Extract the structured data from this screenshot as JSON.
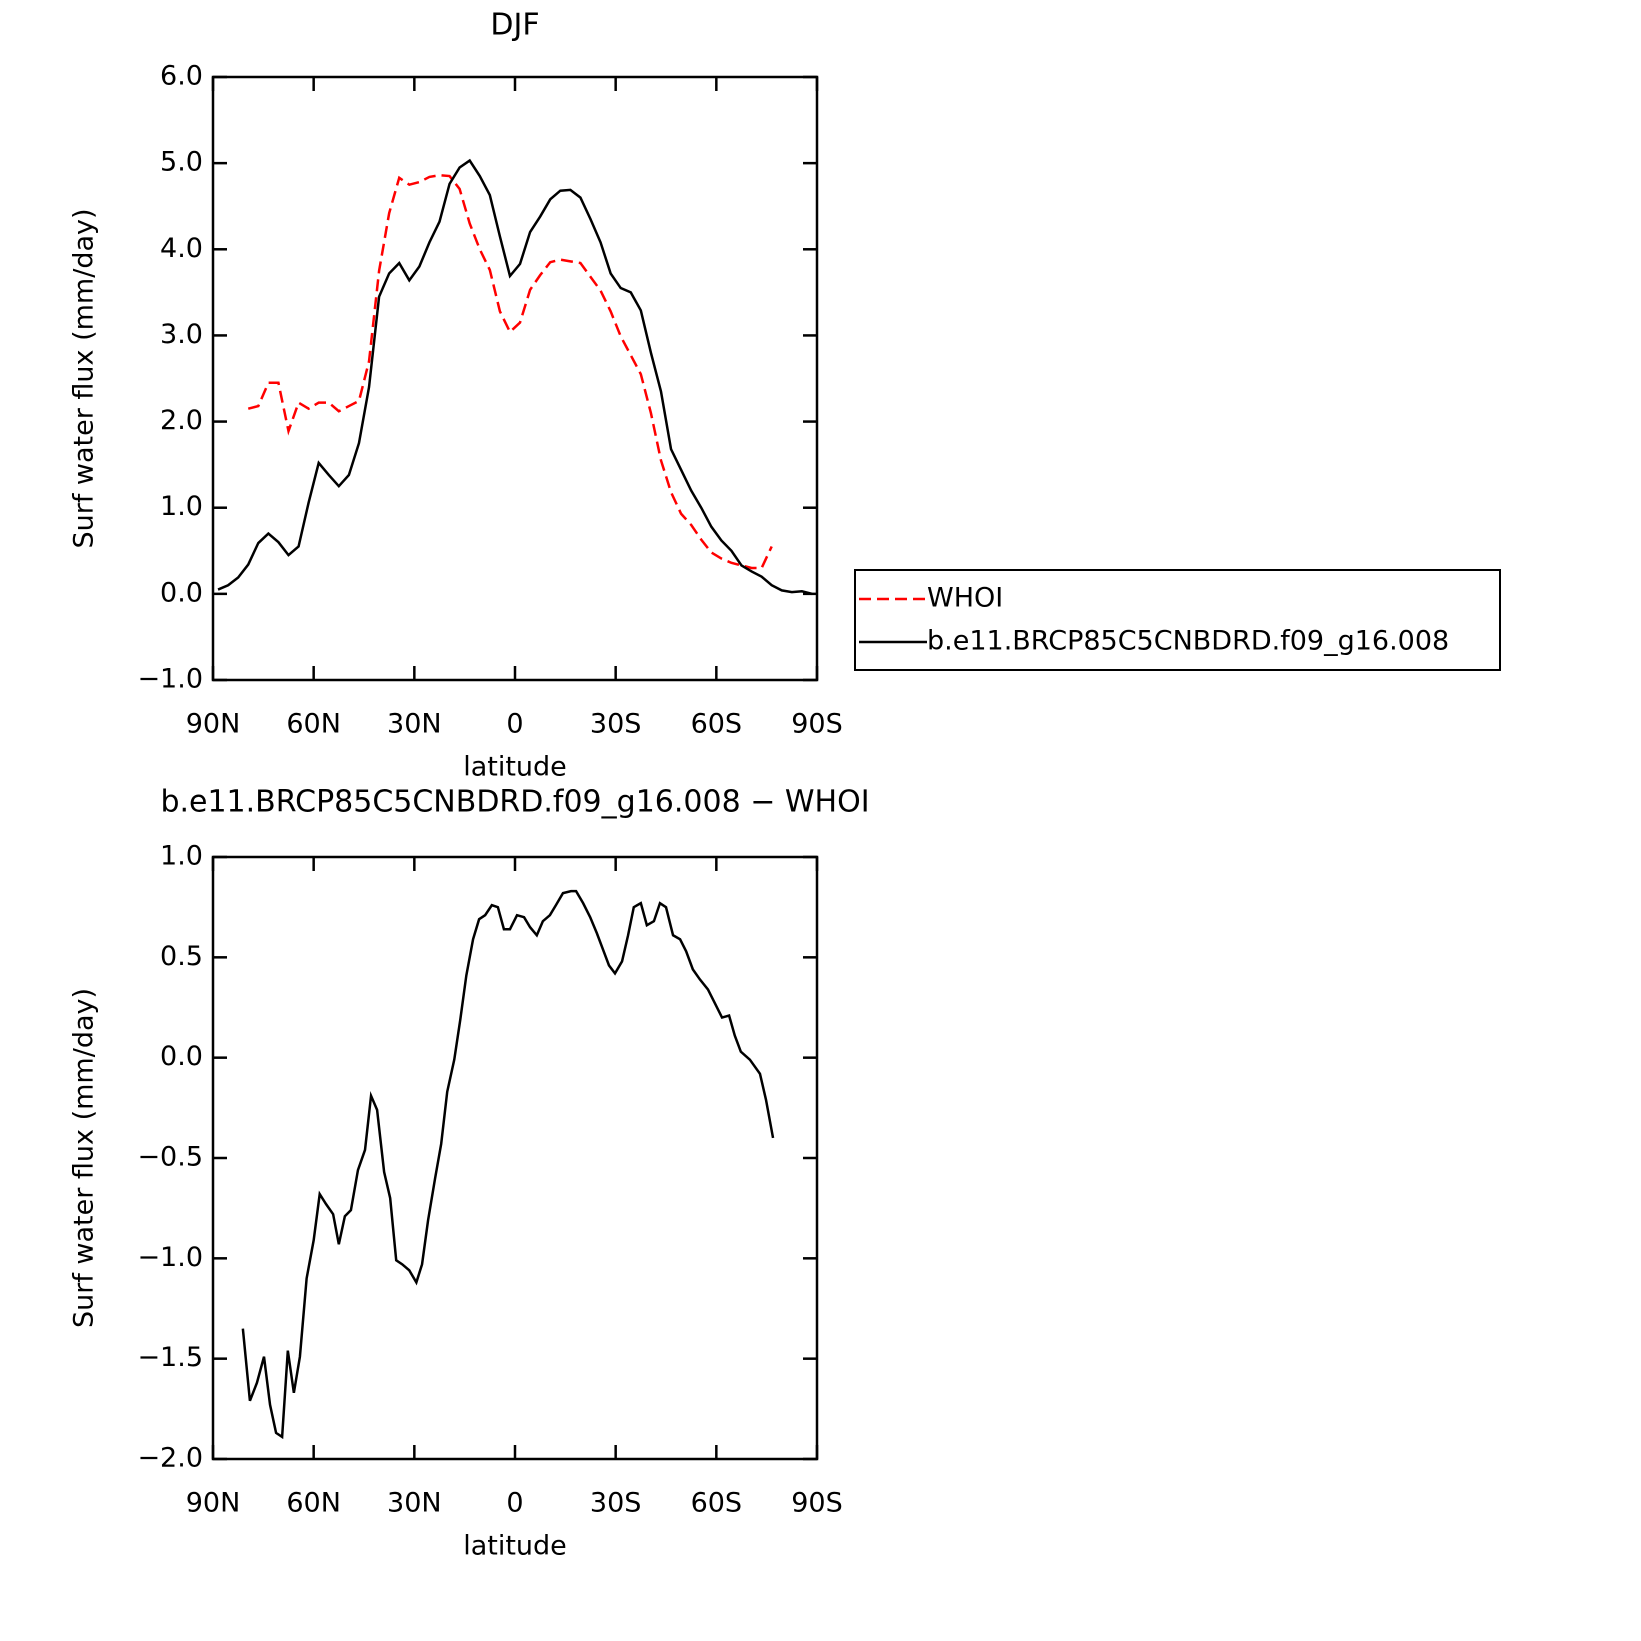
{
  "chart_data": [
    {
      "type": "line",
      "title": "DJF",
      "x_label": "latitude",
      "y_label": "Surf water flux (mm/day)",
      "x": [
        88.5,
        85.5,
        82.5,
        79.5,
        76.5,
        73.5,
        70.5,
        67.5,
        64.5,
        61.5,
        58.5,
        55.5,
        52.5,
        49.5,
        46.5,
        43.5,
        40.5,
        37.5,
        34.5,
        31.5,
        28.5,
        25.5,
        22.5,
        19.5,
        16.5,
        13.5,
        10.5,
        7.5,
        4.5,
        1.5,
        -1.5,
        -4.5,
        -7.5,
        -10.5,
        -13.5,
        -16.5,
        -19.5,
        -22.5,
        -25.5,
        -28.5,
        -31.5,
        -34.5,
        -37.5,
        -40.5,
        -43.5,
        -46.5,
        -49.5,
        -52.5,
        -55.5,
        -58.5,
        -61.5,
        -64.5,
        -67.5,
        -70.5,
        -73.5,
        -76.5,
        -79.5,
        -82.5,
        -85.5,
        -88.5
      ],
      "xlim": [
        90,
        -90
      ],
      "xticks": [
        {
          "value": 90,
          "label": "90N"
        },
        {
          "value": 60,
          "label": "60N"
        },
        {
          "value": 30,
          "label": "30N"
        },
        0,
        {
          "value": -30,
          "label": "30S"
        },
        {
          "value": -60,
          "label": "60S"
        },
        {
          "value": -90,
          "label": "90S"
        }
      ],
      "ylim": [
        -1,
        6
      ],
      "yticks": [
        {
          "value": -1,
          "label": "−1.0"
        },
        {
          "value": 0,
          "label": "0.0"
        },
        {
          "value": 1,
          "label": "1.0"
        },
        {
          "value": 2,
          "label": "2.0"
        },
        {
          "value": 3,
          "label": "3.0"
        },
        {
          "value": 4,
          "label": "4.0"
        },
        {
          "value": 5,
          "label": "5.0"
        },
        {
          "value": 6,
          "label": "6.0"
        }
      ],
      "legend": "outside-right",
      "series": [
        {
          "name": "WHOI",
          "color": "#ff0000",
          "line_style": "dashed",
          "values": [
            null,
            null,
            null,
            2.15,
            2.18,
            2.45,
            2.45,
            1.89,
            2.22,
            2.15,
            2.22,
            2.22,
            2.12,
            2.18,
            2.24,
            2.7,
            3.75,
            4.42,
            4.83,
            4.75,
            4.78,
            4.84,
            4.86,
            4.85,
            4.7,
            4.3,
            4.0,
            3.76,
            3.28,
            3.04,
            3.15,
            3.53,
            3.7,
            3.85,
            3.88,
            3.86,
            3.84,
            3.68,
            3.52,
            3.28,
            2.99,
            2.77,
            2.55,
            2.1,
            1.55,
            1.18,
            0.93,
            0.8,
            0.63,
            0.48,
            0.41,
            0.36,
            0.33,
            0.3,
            0.3,
            0.55,
            null,
            null,
            null,
            null
          ]
        },
        {
          "name": "b.e11.BRCP85C5CNBDRD.f09_g16.008",
          "color": "#000000",
          "line_style": "solid",
          "values": [
            0.05,
            0.1,
            0.19,
            0.34,
            0.59,
            0.7,
            0.6,
            0.45,
            0.55,
            1.06,
            1.52,
            1.38,
            1.25,
            1.38,
            1.75,
            2.4,
            3.45,
            3.72,
            3.84,
            3.64,
            3.8,
            4.08,
            4.32,
            4.76,
            4.95,
            5.03,
            4.85,
            4.63,
            4.15,
            3.69,
            3.83,
            4.2,
            4.38,
            4.58,
            4.68,
            4.69,
            4.6,
            4.35,
            4.08,
            3.72,
            3.55,
            3.5,
            3.29,
            2.8,
            2.35,
            1.68,
            1.44,
            1.2,
            1.0,
            0.78,
            0.62,
            0.5,
            0.33,
            0.26,
            0.2,
            0.1,
            0.04,
            0.02,
            0.03,
            0.0
          ]
        }
      ]
    },
    {
      "type": "line",
      "title": "b.e11.BRCP85C5CNBDRD.f09_g16.008 − WHOI",
      "x_label": "latitude",
      "y_label": "Surf water flux (mm/day)",
      "x": [
        81.1,
        79.0,
        76.9,
        74.8,
        73.0,
        71.2,
        69.4,
        67.7,
        65.9,
        64.1,
        62.1,
        60.0,
        58.2,
        56.3,
        54.2,
        52.5,
        50.7,
        48.9,
        46.8,
        44.7,
        42.9,
        41.1,
        39.0,
        37.2,
        35.4,
        33.6,
        31.5,
        29.4,
        27.7,
        25.9,
        23.8,
        22.0,
        20.2,
        18.1,
        16.3,
        14.5,
        12.5,
        10.7,
        8.9,
        6.9,
        5.1,
        3.3,
        1.5,
        -0.6,
        -2.7,
        -4.5,
        -6.5,
        -8.3,
        -10.4,
        -12.2,
        -14.3,
        -16.7,
        -18.2,
        -20.3,
        -22.4,
        -24.4,
        -26.2,
        -28.0,
        -29.8,
        -31.9,
        -33.7,
        -35.4,
        -37.5,
        -39.3,
        -41.4,
        -43.2,
        -45.0,
        -47.1,
        -49.2,
        -51.0,
        -53.0,
        -55.1,
        -57.5,
        -59.3,
        -61.7,
        -63.8,
        -65.5,
        -67.3,
        -70.0,
        -73.0,
        -74.8,
        -76.9
      ],
      "xlim": [
        90,
        -90
      ],
      "xticks": [
        {
          "value": 90,
          "label": "90N"
        },
        {
          "value": 60,
          "label": "60N"
        },
        {
          "value": 30,
          "label": "30N"
        },
        0,
        {
          "value": -30,
          "label": "30S"
        },
        {
          "value": -60,
          "label": "60S"
        },
        {
          "value": -90,
          "label": "90S"
        }
      ],
      "ylim": [
        -2,
        1
      ],
      "yticks": [
        {
          "value": -2,
          "label": "−2.0"
        },
        {
          "value": -1.5,
          "label": "−1.5"
        },
        {
          "value": -1,
          "label": "−1.0"
        },
        {
          "value": -0.5,
          "label": "−0.5"
        },
        {
          "value": 0,
          "label": "0.0"
        },
        0.5,
        {
          "value": 1,
          "label": "1.0"
        }
      ],
      "series": [
        {
          "color": "#000000",
          "line_style": "solid",
          "values": [
            -1.35,
            -1.71,
            -1.62,
            -1.49,
            -1.73,
            -1.87,
            -1.89,
            -1.46,
            -1.67,
            -1.49,
            -1.1,
            -0.91,
            -0.68,
            -0.73,
            -0.78,
            -0.93,
            -0.79,
            -0.76,
            -0.56,
            -0.46,
            -0.19,
            -0.26,
            -0.57,
            -0.7,
            -1.01,
            -1.03,
            -1.06,
            -1.12,
            -1.03,
            -0.81,
            -0.6,
            -0.43,
            -0.17,
            -0.01,
            0.19,
            0.41,
            0.59,
            0.69,
            0.71,
            0.76,
            0.75,
            0.64,
            0.64,
            0.71,
            0.7,
            0.65,
            0.61,
            0.68,
            0.71,
            0.76,
            0.82,
            0.83,
            0.83,
            0.77,
            0.7,
            0.62,
            0.54,
            0.46,
            0.42,
            0.48,
            0.61,
            0.75,
            0.77,
            0.66,
            0.68,
            0.77,
            0.75,
            0.61,
            0.59,
            0.53,
            0.44,
            0.39,
            0.34,
            0.28,
            0.2,
            0.21,
            0.11,
            0.03,
            -0.01,
            -0.08,
            -0.21,
            -0.4
          ]
        }
      ]
    }
  ]
}
